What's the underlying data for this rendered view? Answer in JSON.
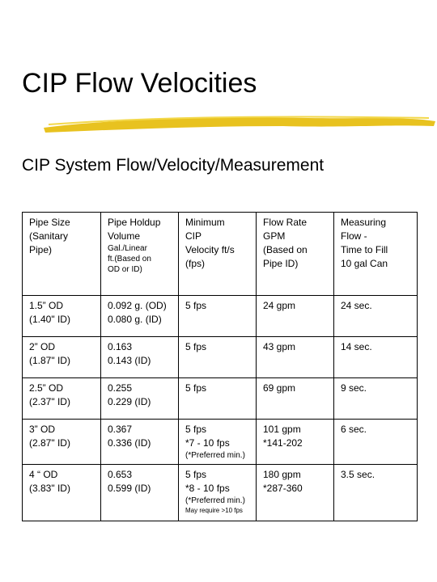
{
  "header": {
    "title": "CIP Flow Velocities",
    "subtitle": "CIP System Flow/Velocity/Measurement"
  },
  "table": {
    "header": [
      [
        "Pipe Size",
        "(Sanitary",
        "Pipe)"
      ],
      [
        "Pipe Holdup",
        "Volume",
        "Gal./Linear",
        "ft.(Based on",
        "OD or ID)"
      ],
      [
        "Minimum",
        "CIP",
        "Velocity ft/s",
        "(fps)"
      ],
      [
        "Flow Rate",
        "GPM",
        "(Based on",
        "Pipe ID)"
      ],
      [
        "Measuring",
        "Flow -",
        "Time to Fill",
        "10 gal Can"
      ]
    ],
    "rows": [
      [
        [
          "1.5” OD",
          "(1.40\" ID)"
        ],
        [
          "0.092 g. (OD)",
          "0.080 g. (ID)"
        ],
        [
          "5 fps"
        ],
        [
          "24 gpm"
        ],
        [
          "24 sec."
        ]
      ],
      [
        [
          "2” OD",
          "(1.87\" ID)"
        ],
        [
          "0.163",
          "0.143 (ID)"
        ],
        [
          "5 fps"
        ],
        [
          "43 gpm"
        ],
        [
          "14 sec."
        ]
      ],
      [
        [
          "2.5” OD",
          "(2.37\" ID)"
        ],
        [
          "0.255",
          "0.229 (ID)"
        ],
        [
          "5 fps"
        ],
        [
          "69 gpm"
        ],
        [
          "9 sec."
        ]
      ],
      [
        [
          "3” OD",
          "(2.87\" ID)"
        ],
        [
          "0.367",
          "0.336 (ID)"
        ],
        [
          "5 fps",
          "*7 - 10 fps",
          "(*Preferred min.)"
        ],
        [
          "101 gpm",
          "*141-202"
        ],
        [
          "6 sec."
        ]
      ],
      [
        [
          "4 “ OD",
          "(3.83\" ID)"
        ],
        [
          "0.653",
          "0.599 (ID)"
        ],
        [
          "5 fps",
          "*8 - 10 fps",
          "(*Preferred min.)",
          "May require >10 fps"
        ],
        [
          "180 gpm",
          "*287-360"
        ],
        [
          "3.5 sec."
        ]
      ]
    ]
  }
}
